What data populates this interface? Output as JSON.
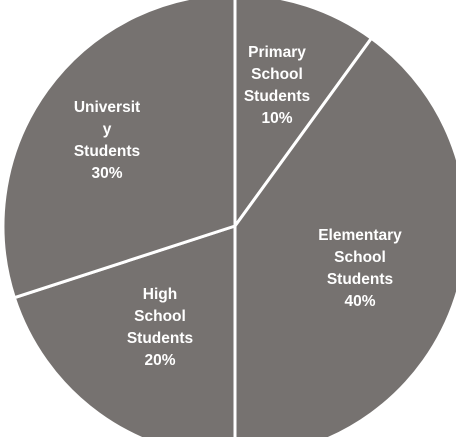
{
  "chart_data": {
    "type": "pie",
    "title": "",
    "colors": {
      "slice_fill": "#767270",
      "slice_border": "#ffffff",
      "label_text": "#ffffff",
      "background": "#ffffff"
    },
    "slices": [
      {
        "category": "Primary School Students",
        "value": 10,
        "label_lines": [
          "Primary",
          "School",
          "Students",
          "10%"
        ]
      },
      {
        "category": "Elementary School Students",
        "value": 40,
        "label_lines": [
          "Elementary",
          "School",
          "Students",
          "40%"
        ]
      },
      {
        "category": "High School Students",
        "value": 20,
        "label_lines": [
          "High",
          "School",
          "Students",
          "20%"
        ]
      },
      {
        "category": "University Students",
        "value": 30,
        "label_lines": [
          "Universit",
          "y",
          "Students",
          "30%"
        ]
      }
    ]
  }
}
